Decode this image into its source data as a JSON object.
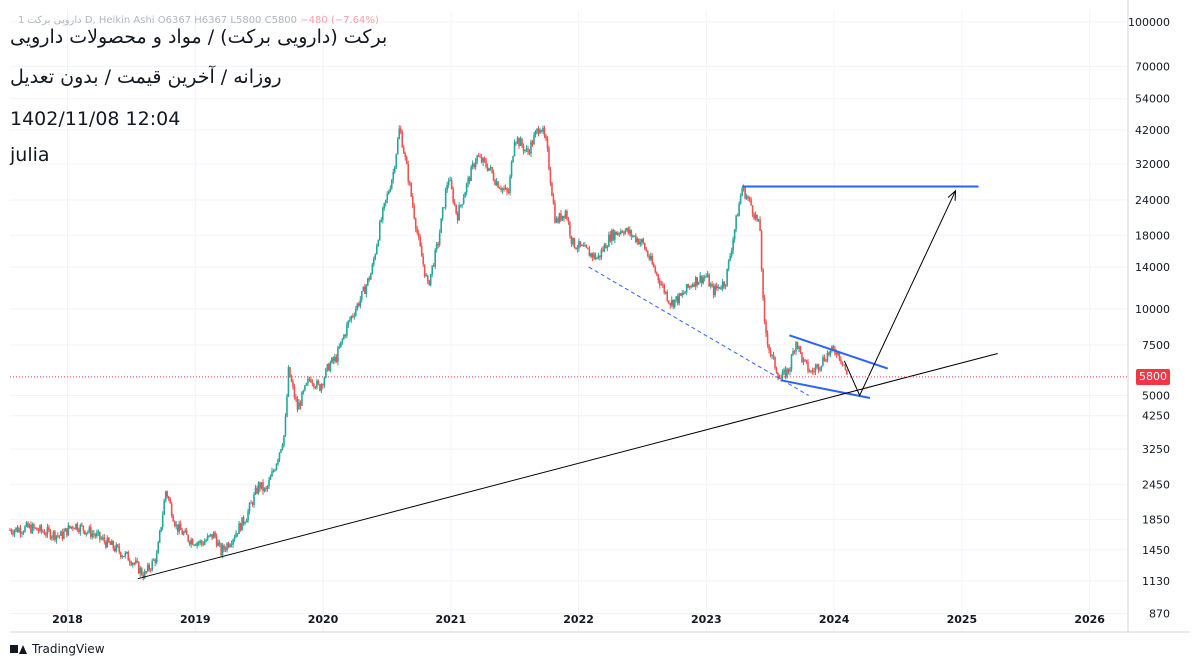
{
  "header": {
    "legend_symbol": "داروپی برکت 1",
    "legend_ohlc": "D, Heikin Ashi  O6367  H6367  L5800  C5800",
    "legend_change": "−480 (−7.64%)",
    "title": "برکت (دارویی برکت) / مواد و محصولات دارویی",
    "subtitle": "روزانه / آخرین قیمت / بدون تعدیل",
    "timestamp": "1402/11/08 12:04",
    "author": "julia"
  },
  "footer": {
    "brand": "TradingView",
    "logo_icon": "tradingview-logo-icon"
  },
  "colors": {
    "up": "#26a69a",
    "down": "#ef5350",
    "pattern": "#2962ff",
    "trend": "#000000",
    "price_line": "#f23645"
  },
  "chart_data": {
    "type": "candlestick",
    "style": "Heikin Ashi",
    "interval": "D",
    "yscale": "log",
    "ylim": [
      750,
      110000
    ],
    "xlim": [
      2017.55,
      2026.3
    ],
    "y_ticks": [
      "100000",
      "70000",
      "54000",
      "42000",
      "32000",
      "24000",
      "18000",
      "14000",
      "10000",
      "7500",
      "5000",
      "4250",
      "3250",
      "2450",
      "1850",
      "1450",
      "1130",
      "870"
    ],
    "y_tick_values": [
      100000,
      70000,
      54000,
      42000,
      32000,
      24000,
      18000,
      14000,
      10000,
      7500,
      5000,
      4250,
      3250,
      2450,
      1850,
      1450,
      1130,
      870
    ],
    "x_ticks": [
      "2018",
      "2019",
      "2020",
      "2021",
      "2022",
      "2023",
      "2024",
      "2025",
      "2026"
    ],
    "x_tick_values": [
      2018,
      2019,
      2020,
      2021,
      2022,
      2023,
      2024,
      2025,
      2026
    ],
    "last_price": 5800,
    "last_price_label": "5800",
    "price_path": [
      [
        2017.55,
        1700
      ],
      [
        2017.7,
        1730
      ],
      [
        2017.95,
        1620
      ],
      [
        2018.05,
        1780
      ],
      [
        2018.2,
        1650
      ],
      [
        2018.35,
        1490
      ],
      [
        2018.5,
        1340
      ],
      [
        2018.6,
        1180
      ],
      [
        2018.7,
        1380
      ],
      [
        2018.77,
        2350
      ],
      [
        2018.85,
        1750
      ],
      [
        2018.95,
        1580
      ],
      [
        2019.05,
        1530
      ],
      [
        2019.15,
        1640
      ],
      [
        2019.2,
        1420
      ],
      [
        2019.3,
        1620
      ],
      [
        2019.4,
        1900
      ],
      [
        2019.5,
        2450
      ],
      [
        2019.55,
        2300
      ],
      [
        2019.62,
        2800
      ],
      [
        2019.7,
        3700
      ],
      [
        2019.73,
        6100
      ],
      [
        2019.8,
        4500
      ],
      [
        2019.9,
        5800
      ],
      [
        2019.97,
        5300
      ],
      [
        2020.05,
        6400
      ],
      [
        2020.1,
        6700
      ],
      [
        2020.2,
        9000
      ],
      [
        2020.3,
        11000
      ],
      [
        2020.38,
        13500
      ],
      [
        2020.45,
        20000
      ],
      [
        2020.55,
        30000
      ],
      [
        2020.6,
        43000
      ],
      [
        2020.66,
        30000
      ],
      [
        2020.75,
        17000
      ],
      [
        2020.82,
        12000
      ],
      [
        2020.9,
        17000
      ],
      [
        2020.98,
        29000
      ],
      [
        2021.05,
        21000
      ],
      [
        2021.1,
        25000
      ],
      [
        2021.2,
        34000
      ],
      [
        2021.3,
        31000
      ],
      [
        2021.35,
        28000
      ],
      [
        2021.45,
        25000
      ],
      [
        2021.5,
        40000
      ],
      [
        2021.6,
        35000
      ],
      [
        2021.7,
        44000
      ],
      [
        2021.75,
        37000
      ],
      [
        2021.82,
        20000
      ],
      [
        2021.9,
        22000
      ],
      [
        2021.95,
        17000
      ],
      [
        2022.05,
        16000
      ],
      [
        2022.15,
        15000
      ],
      [
        2022.25,
        18000
      ],
      [
        2022.35,
        19000
      ],
      [
        2022.5,
        17000
      ],
      [
        2022.6,
        13500
      ],
      [
        2022.72,
        10500
      ],
      [
        2022.8,
        11000
      ],
      [
        2022.9,
        12500
      ],
      [
        2023.0,
        13000
      ],
      [
        2023.05,
        11500
      ],
      [
        2023.15,
        12500
      ],
      [
        2023.23,
        20000
      ],
      [
        2023.28,
        26500
      ],
      [
        2023.35,
        23000
      ],
      [
        2023.42,
        19000
      ],
      [
        2023.45,
        9000
      ],
      [
        2023.5,
        7000
      ],
      [
        2023.58,
        5700
      ],
      [
        2023.65,
        6200
      ],
      [
        2023.7,
        7800
      ],
      [
        2023.76,
        6500
      ],
      [
        2023.82,
        6000
      ],
      [
        2023.88,
        6400
      ],
      [
        2023.95,
        7000
      ],
      [
        2024.02,
        7200
      ],
      [
        2024.08,
        6400
      ],
      [
        2024.1,
        5800
      ]
    ],
    "drawings": [
      {
        "type": "horizontal-resistance",
        "from": [
          2023.28,
          26700
        ],
        "to": [
          2025.13,
          26700
        ]
      },
      {
        "type": "descending-channel-upper",
        "from": [
          2023.65,
          8100
        ],
        "to": [
          2024.42,
          6200
        ]
      },
      {
        "type": "descending-channel-lower",
        "from": [
          2023.58,
          5650
        ],
        "to": [
          2024.28,
          4900
        ]
      },
      {
        "type": "dashed-trend",
        "from": [
          2022.08,
          14000
        ],
        "to": [
          2023.8,
          5000
        ]
      },
      {
        "type": "long-term-trend",
        "from": [
          2018.55,
          1150
        ],
        "to": [
          2025.28,
          7000
        ]
      },
      {
        "type": "projection-arrow",
        "points": [
          [
            2024.08,
            6600
          ],
          [
            2024.2,
            5000
          ],
          [
            2024.95,
            25800
          ]
        ]
      }
    ]
  }
}
